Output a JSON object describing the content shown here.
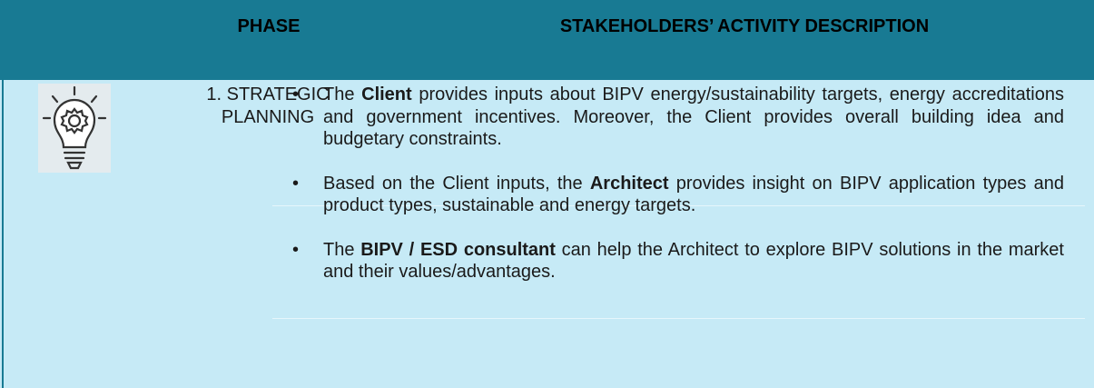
{
  "table": {
    "header": [
      "PHASE",
      "STAKEHOLDERS’ ACTIVITY DESCRIPTION"
    ],
    "rows": [
      {
        "phase": [
          "1. STRATEGIC",
          "PLANNING"
        ],
        "bullets": [
          [
            {
              "text": "The "
            },
            {
              "text": "Client",
              "bold": true
            },
            {
              "text": " provides inputs about BIPV energy/sustainability targets, energy accreditations and government incentives. Moreover, the Client provides overall building idea and budgetary constraints."
            }
          ],
          [
            {
              "text": "Based on the Client inputs, the "
            },
            {
              "text": "Architect",
              "bold": true
            },
            {
              "text": " provides insight on BIPV application types and product types, sustainable and energy targets."
            }
          ],
          [
            {
              "text": "The "
            },
            {
              "text": "BIPV / ESD consultant",
              "bold": true
            },
            {
              "text": " can help the Architect to explore BIPV solutions in the market and their values/advantages."
            }
          ]
        ]
      }
    ]
  }
}
